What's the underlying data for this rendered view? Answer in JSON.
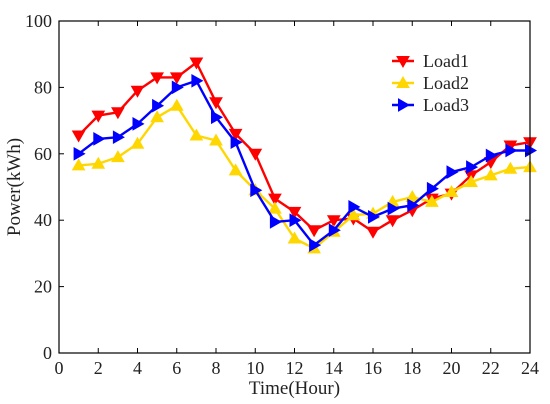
{
  "chart_data": {
    "type": "line",
    "xlabel": "Time(Hour)",
    "ylabel": "Power(kWh)",
    "xlim": [
      0,
      24
    ],
    "ylim": [
      0,
      100
    ],
    "xticks": [
      0,
      2,
      4,
      6,
      8,
      10,
      12,
      14,
      16,
      18,
      20,
      22,
      24
    ],
    "yticks": [
      0,
      20,
      40,
      60,
      80,
      100
    ],
    "grid": false,
    "legend_position": "top-right",
    "x": [
      1,
      2,
      3,
      4,
      5,
      6,
      7,
      8,
      9,
      10,
      11,
      12,
      13,
      14,
      15,
      16,
      17,
      18,
      19,
      20,
      21,
      22,
      23,
      24
    ],
    "series": [
      {
        "name": "Load1",
        "color": "#ff0000",
        "marker": "triangle-down",
        "values": [
          65.5,
          71.5,
          72.5,
          79,
          83,
          83,
          87.5,
          75.5,
          66,
          60,
          46.5,
          42.5,
          37,
          40,
          40.5,
          36.5,
          40,
          43,
          46.5,
          48,
          53.5,
          57.5,
          62.5,
          63.5
        ]
      },
      {
        "name": "Load2",
        "color": "#ffd700",
        "marker": "triangle-up",
        "values": [
          56.5,
          57,
          59,
          63,
          71,
          74.5,
          65.5,
          64,
          55,
          49,
          43.5,
          34.5,
          31.5,
          36.5,
          41.5,
          42,
          45.5,
          47,
          45.5,
          48.5,
          51.5,
          53.5,
          55.5,
          56
        ]
      },
      {
        "name": "Load3",
        "color": "#0000ff",
        "marker": "triangle-right",
        "values": [
          60,
          64.5,
          65,
          69,
          74.5,
          80,
          82,
          71,
          63.5,
          49,
          39.5,
          40,
          32.5,
          37,
          44,
          41,
          43.5,
          44.5,
          49.5,
          54.5,
          56,
          59.5,
          61,
          61
        ]
      }
    ]
  }
}
